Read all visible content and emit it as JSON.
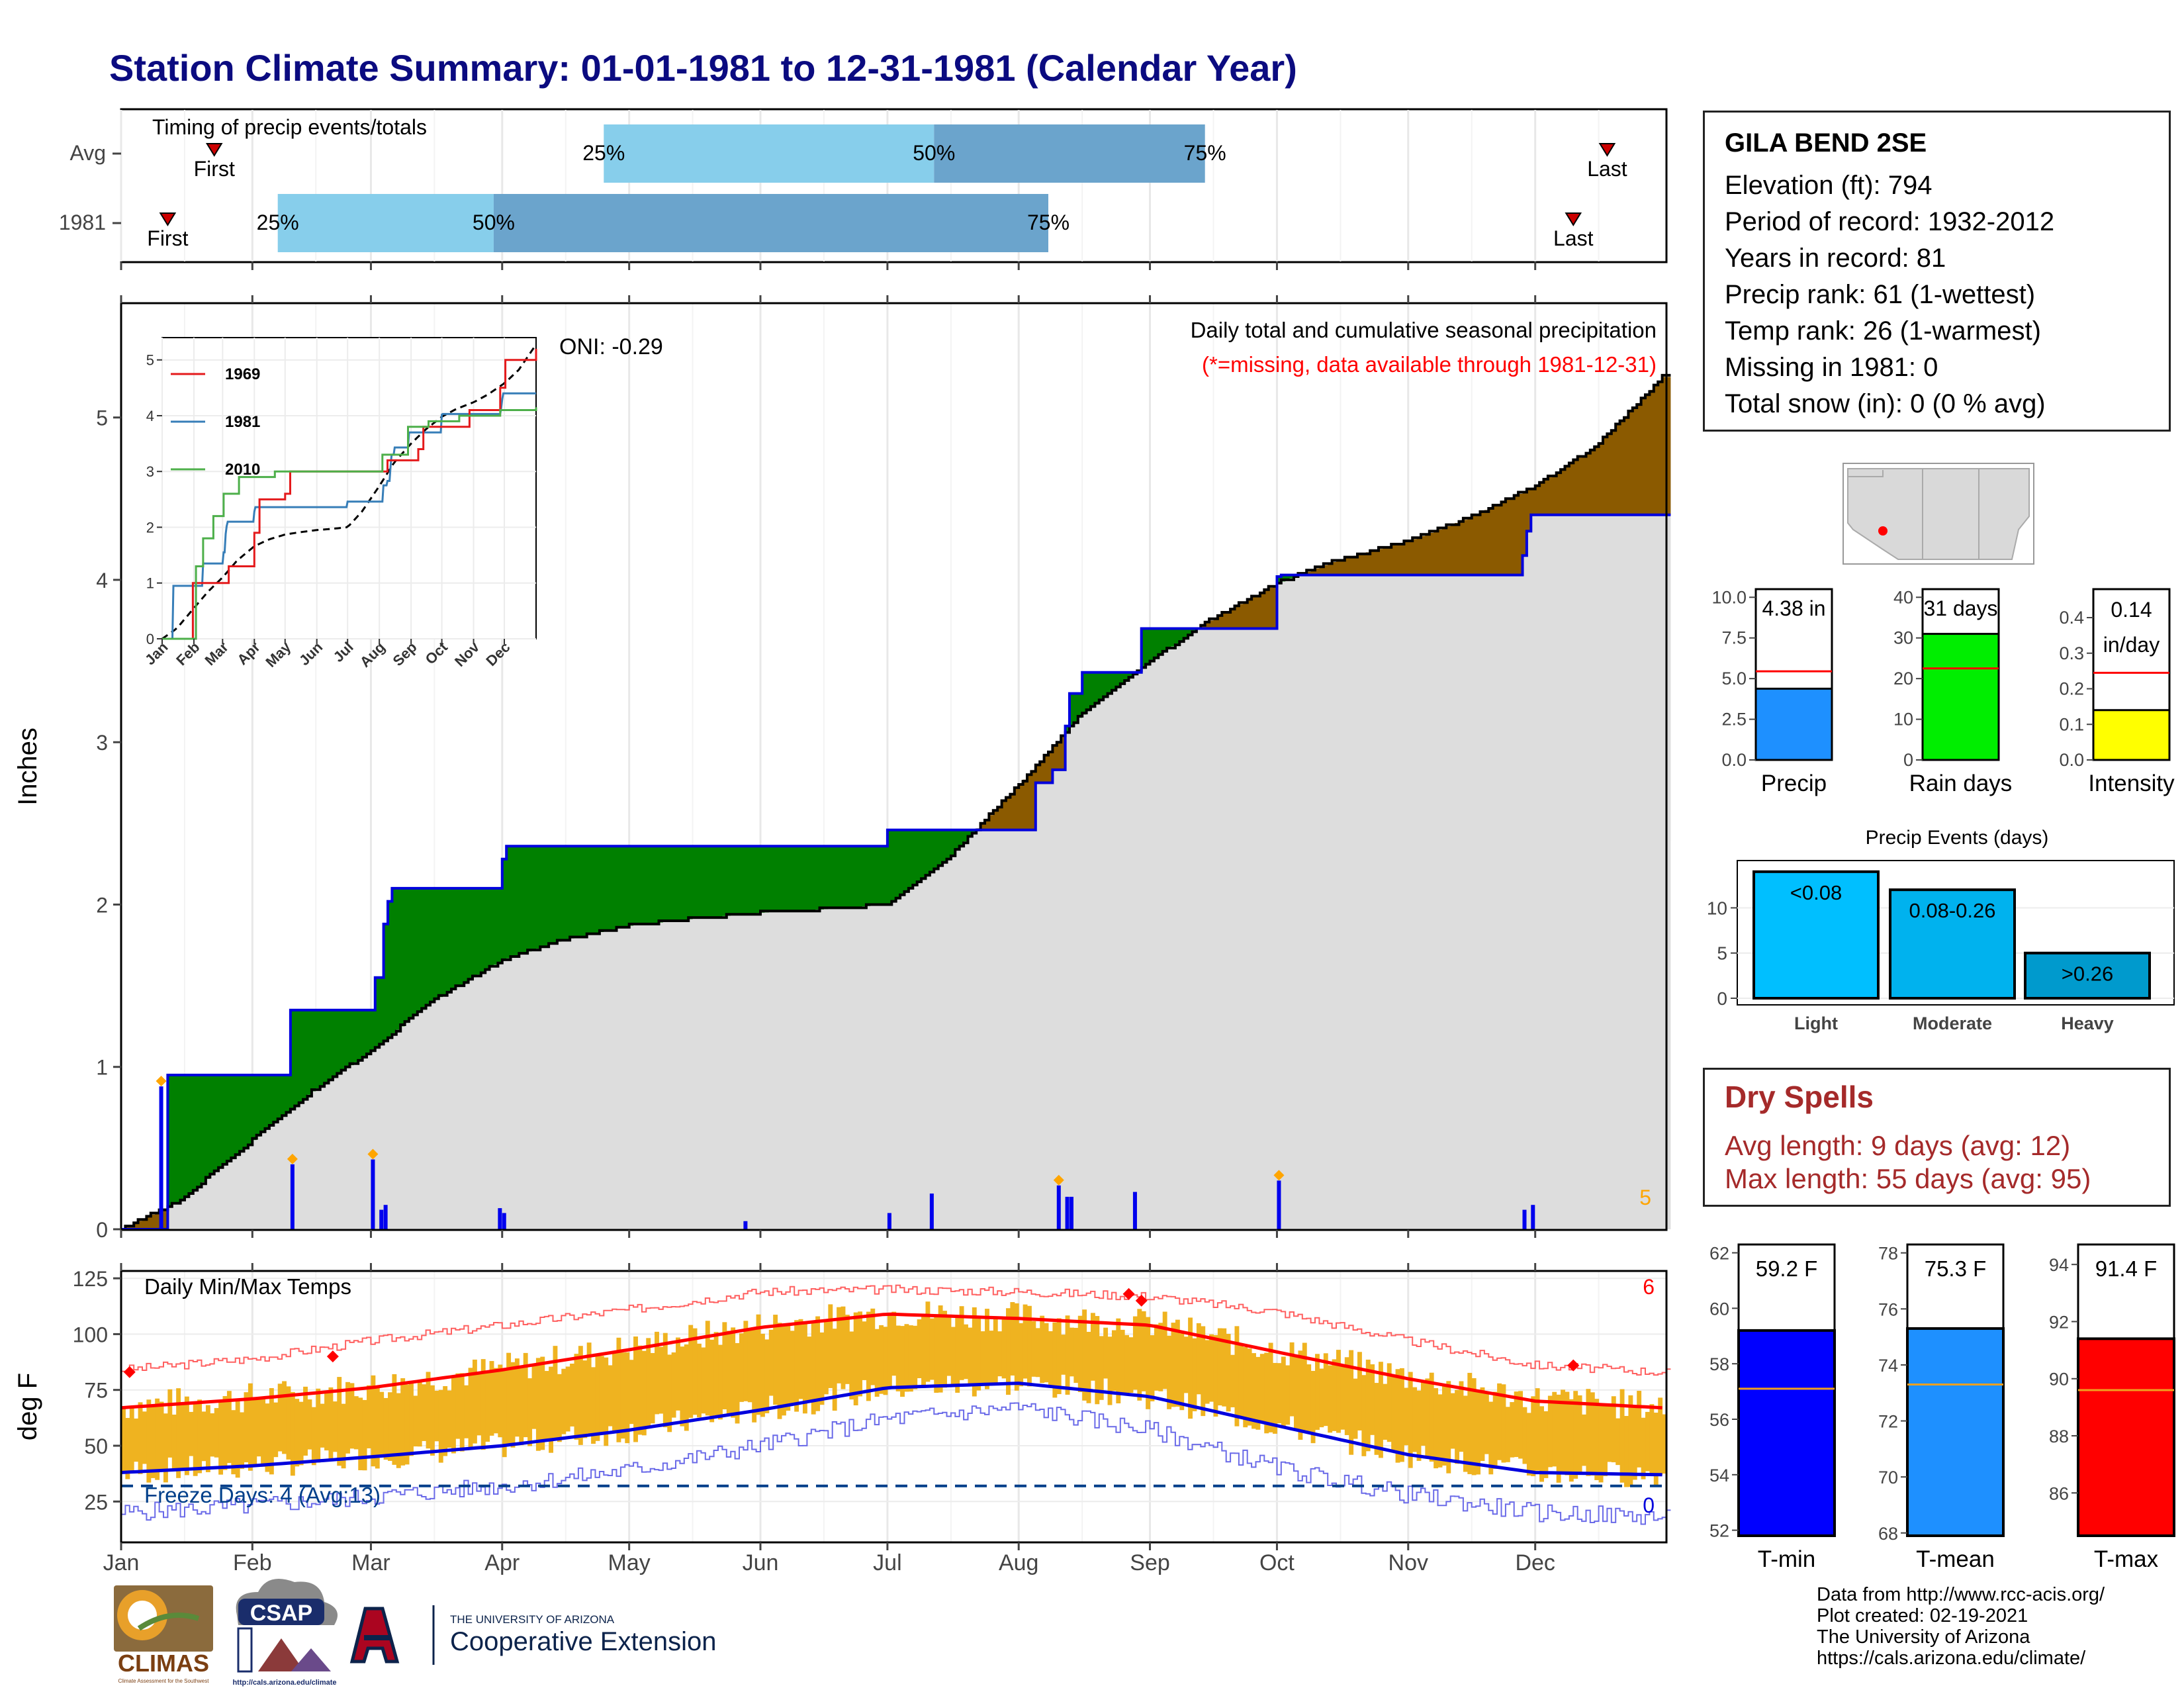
{
  "title": "Station Climate Summary: 01-01-1981 to 12-31-1981 (Calendar Year)",
  "colors": {
    "title": "#0b0b80",
    "light_blue": "#87ceeb",
    "mid_blue": "#6ba4cc",
    "precip_bar": "#0000ee",
    "green_fill": "#008000",
    "brown_fill": "#8b5a00",
    "gray_fill": "#dddddd",
    "temp_bar": "#efb320",
    "red_line": "#ff0000",
    "blue_line": "#0000dd",
    "freeze_line": "#003f8a",
    "dry_spells": "#a52a2a"
  },
  "timing": {
    "label": "Timing of precip events/totals",
    "rows": [
      {
        "name": "Avg",
        "first_label": "First",
        "last_label": "Last",
        "first_doy": 22,
        "last_doy": 351,
        "p25": 114,
        "p50": 192,
        "p75": 256,
        "p25_label": "25%",
        "p50_label": "50%",
        "p75_label": "75%"
      },
      {
        "name": "1981",
        "first_label": "First",
        "last_label": "Last",
        "first_doy": 11,
        "last_doy": 343,
        "p25": 37,
        "p50": 88,
        "p75": 219,
        "p25_label": "25%",
        "p50_label": "50%",
        "p75_label": "75%"
      }
    ]
  },
  "precip_panel": {
    "ylabel": "Inches",
    "oni_label": "ONI: -0.29",
    "title_line1": "Daily total and cumulative seasonal precipitation",
    "title_line2": "(*=missing, data available through 1981-12-31)",
    "missing_count": "5",
    "y_ticks": [
      "0",
      "1",
      "2",
      "3",
      "4",
      "5"
    ]
  },
  "inset": {
    "y_ticks": [
      "0",
      "1",
      "2",
      "3",
      "4",
      "5"
    ],
    "x_ticks": [
      "Jan",
      "Feb",
      "Mar",
      "Apr",
      "May",
      "Jun",
      "Jul",
      "Aug",
      "Sep",
      "Oct",
      "Nov",
      "Dec"
    ],
    "legend": [
      {
        "label": "1969",
        "color": "#e41a1c"
      },
      {
        "label": "1981",
        "color": "#377eb8"
      },
      {
        "label": "2010",
        "color": "#4daf4a"
      }
    ]
  },
  "temp_panel": {
    "ylabel": "deg F",
    "title": "Daily Min/Max Temps",
    "freeze_label": "Freeze Days: 4 (Avg:13)",
    "count_top": "6",
    "count_bottom": "0",
    "y_ticks": [
      "25",
      "50",
      "75",
      "100",
      "125"
    ]
  },
  "months": [
    "Jan",
    "Feb",
    "Mar",
    "Apr",
    "May",
    "Jun",
    "Jul",
    "Aug",
    "Sep",
    "Oct",
    "Nov",
    "Dec"
  ],
  "station": {
    "name": "GILA BEND 2SE",
    "lines": [
      "Elevation (ft): 794",
      "Period of record: 1932-2012",
      "Years in record: 81",
      "Precip rank: 61 (1-wettest)",
      "Temp rank: 26 (1-warmest)",
      "Missing in 1981: 0",
      "Total snow (in): 0 (0 % avg)"
    ]
  },
  "summary_bars": [
    {
      "label": "Precip",
      "value_label": "4.38 in",
      "value": 4.38,
      "avg": 5.45,
      "ylim": [
        0,
        10.5
      ],
      "ticks": [
        "0.0",
        "2.5",
        "5.0",
        "7.5",
        "10.0"
      ],
      "color": "#1e90ff"
    },
    {
      "label": "Rain days",
      "value_label": "31 days",
      "value": 31,
      "avg": 22.5,
      "ylim": [
        0,
        42
      ],
      "ticks": [
        "0",
        "10",
        "20",
        "30",
        "40"
      ],
      "color": "#00ee00"
    },
    {
      "label": "Intensity",
      "value_label_1": "0.14",
      "value_label_2": "in/day",
      "value": 0.14,
      "avg": 0.245,
      "ylim": [
        0,
        0.48
      ],
      "ticks": [
        "0.0",
        "0.1",
        "0.2",
        "0.3",
        "0.4"
      ],
      "color": "#ffff00"
    }
  ],
  "precip_events": {
    "title": "Precip Events (days)",
    "ticks": [
      "0",
      "5",
      "10"
    ],
    "ylim": [
      0,
      14.5
    ],
    "bars": [
      {
        "label": "Light",
        "bin": "<0.08",
        "value": 14,
        "color": "#00bfff"
      },
      {
        "label": "Moderate",
        "bin": "0.08-0.26",
        "value": 12,
        "color": "#00b2ee"
      },
      {
        "label": "Heavy",
        "bin": ">0.26",
        "value": 5,
        "color": "#009acd"
      }
    ]
  },
  "dry_spells": {
    "title": "Dry Spells",
    "avg_length": "Avg length: 9 days (avg: 12)",
    "max_length": "Max length: 55 days (avg: 95)"
  },
  "temp_bars": [
    {
      "label": "T-min",
      "value_label": "59.2 F",
      "value": 59.2,
      "avg": 57.1,
      "ylim": [
        51.8,
        62.3
      ],
      "ticks": [
        "52",
        "54",
        "56",
        "58",
        "60",
        "62"
      ],
      "color": "#0000ff"
    },
    {
      "label": "T-mean",
      "value_label": "75.3 F",
      "value": 75.3,
      "avg": 73.3,
      "ylim": [
        67.9,
        78.3
      ],
      "ticks": [
        "68",
        "70",
        "72",
        "74",
        "76",
        "78"
      ],
      "color": "#1e90ff"
    },
    {
      "label": "T-max",
      "value_label": "91.4 F",
      "value": 91.4,
      "avg": 89.6,
      "ylim": [
        84.5,
        94.7
      ],
      "ticks": [
        "86",
        "88",
        "90",
        "92",
        "94"
      ],
      "color": "#ff0000"
    }
  ],
  "logos": {
    "climas": "CLIMAS",
    "climas_sub": "Climate Assessment for the Southwest",
    "csap": "CSAP",
    "csap_url": "http://cals.arizona.edu/climate",
    "ua_small": "THE UNIVERSITY OF ARIZONA",
    "ua_big": "Cooperative Extension"
  },
  "credits": [
    "Data from http://www.rcc-acis.org/",
    "Plot created: 02-19-2021",
    "The University of Arizona",
    "https://cals.arizona.edu/climate/"
  ],
  "chart_data": [
    {
      "type": "area",
      "title": "Daily total and cumulative seasonal precipitation",
      "ylabel": "Inches",
      "ylim": [
        0,
        5.7
      ],
      "series": [
        {
          "name": "1981",
          "x": [
            "Jan 1",
            "Jan 5",
            "Jan 10",
            "Jan 11",
            "Jan 12",
            "Feb 9",
            "Feb 10",
            "Feb 27",
            "Feb 28",
            "Mar 2",
            "Mar 3",
            "Mar 4",
            "Mar 5",
            "Mar 6",
            "Mar 31",
            "Apr 1",
            "Apr 2",
            "May 27",
            "May 28",
            "May 29",
            "Jun 30",
            "Jul 1",
            "Jul 10",
            "Jul 11",
            "Jul 12",
            "Jul 13",
            "Aug 5",
            "Aug 6",
            "Aug 8",
            "Aug 9",
            "Aug 10",
            "Aug 11",
            "Aug 12",
            "Aug 13",
            "Aug 15",
            "Aug 16",
            "Aug 17",
            "Aug 19",
            "Aug 20",
            "Aug 21",
            "Aug 25",
            "Aug 26",
            "Aug 27",
            "Aug 28",
            "Aug 29",
            "Aug 30",
            "Oct 1",
            "Oct 2",
            "Nov 27",
            "Nov 28",
            "Nov 29",
            "Nov 30",
            "Dec 31"
          ],
          "values": [
            0,
            0,
            0,
            0,
            0.95,
            0.95,
            1.35,
            1.35,
            1.35,
            1.55,
            1.55,
            1.88,
            2.02,
            2.1,
            2.1,
            2.28,
            2.36,
            2.36,
            2.36,
            2.36,
            2.36,
            2.46,
            2.46,
            2.46,
            2.46,
            2.46,
            2.75,
            2.75,
            2.75,
            2.83,
            2.83,
            2.83,
            3.1,
            3.3,
            3.3,
            3.43,
            3.43,
            3.43,
            3.43,
            3.43,
            3.43,
            3.43,
            3.43,
            3.43,
            3.43,
            3.7,
            4.02,
            4.03,
            4.03,
            4.15,
            4.3,
            4.4,
            4.4
          ]
        },
        {
          "name": "Avg",
          "x": [
            "Jan 1",
            "Jan 15",
            "Feb 1",
            "Feb 15",
            "Mar 1",
            "Mar 15",
            "Apr 1",
            "Apr 15",
            "May 1",
            "May 15",
            "Jun 1",
            "Jun 15",
            "Jul 1",
            "Jul 15",
            "Aug 1",
            "Aug 15",
            "Sep 1",
            "Sep 15",
            "Oct 1",
            "Oct 15",
            "Nov 1",
            "Nov 15",
            "Dec 1",
            "Dec 15",
            "Dec 31"
          ],
          "values": [
            0,
            0.18,
            0.55,
            0.85,
            1.1,
            1.4,
            1.66,
            1.78,
            1.87,
            1.91,
            1.95,
            1.97,
            2.0,
            2.28,
            2.74,
            3.15,
            3.5,
            3.75,
            3.98,
            4.12,
            4.24,
            4.38,
            4.58,
            4.82,
            5.25
          ]
        }
      ],
      "daily_precip_in": {
        "Jan 10": 0.88,
        "Feb 10": 0.4,
        "Mar 1": 0.43,
        "Mar 3": 0.12,
        "Mar 4": 0.15,
        "Mar 31": 0.13,
        "Apr 1": 0.1,
        "May 28": 0.05,
        "Jul 1": 0.1,
        "Jul 11": 0.22,
        "Aug 10": 0.27,
        "Aug 12": 0.2,
        "Aug 13": 0.2,
        "Aug 28": 0.23,
        "Oct 1": 0.3,
        "Nov 28": 0.12,
        "Nov 30": 0.15
      }
    },
    {
      "type": "line",
      "title": "Daily Min/Max Temps",
      "ylabel": "deg F",
      "ylim": [
        7,
        128
      ],
      "x": [
        "Jan 1",
        "Feb 1",
        "Mar 1",
        "Apr 1",
        "May 1",
        "Jun 1",
        "Jul 1",
        "Aug 1",
        "Sep 1",
        "Oct 1",
        "Nov 1",
        "Dec 1",
        "Dec 31"
      ],
      "series": [
        {
          "name": "Avg max",
          "values": [
            67,
            71,
            76,
            84,
            93,
            103,
            109,
            107,
            104,
            92,
            80,
            70,
            67
          ]
        },
        {
          "name": "Avg min",
          "values": [
            38,
            41,
            45,
            50,
            57,
            66,
            76,
            78,
            72,
            59,
            46,
            38,
            37
          ]
        },
        {
          "name": "Record max",
          "values": [
            84,
            89,
            97,
            104,
            111,
            119,
            120,
            119,
            117,
            110,
            97,
            86,
            83
          ]
        },
        {
          "name": "Record min",
          "values": [
            20,
            23,
            27,
            32,
            39,
            50,
            62,
            67,
            57,
            40,
            28,
            20,
            18
          ]
        }
      ],
      "freeze_threshold_f": 32
    }
  ]
}
